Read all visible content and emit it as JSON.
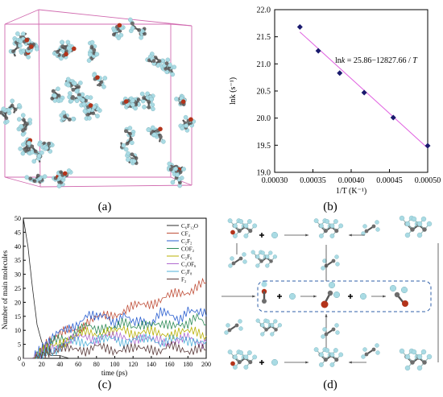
{
  "labels": {
    "a": "(a)",
    "b": "(b)",
    "c": "(c)",
    "d": "(d)"
  },
  "plot_b": {
    "equation": "lnk = 25.86−12827.66 / T",
    "eq_head": "ln",
    "eq_k": "k",
    "eq_rest": " = 25.86−12827.66 / ",
    "eq_T": "T"
  },
  "chart_data": [
    {
      "type": "scatter",
      "panel": "b",
      "xlabel": "1/T (K⁻¹)",
      "ylabel": "lnk (s⁻¹)",
      "xlim": [
        0.0003,
        0.0005
      ],
      "ylim": [
        19.0,
        22.0
      ],
      "xticks": [
        "0.00030",
        "0.00035",
        "0.00040",
        "0.00045",
        "0.00050"
      ],
      "yticks": [
        "19.0",
        "19.5",
        "20.0",
        "20.5",
        "21.0",
        "21.5",
        "22.0"
      ],
      "points": [
        [
          0.000333,
          21.68
        ],
        [
          0.000357,
          21.24
        ],
        [
          0.000385,
          20.83
        ],
        [
          0.000417,
          20.47
        ],
        [
          0.000455,
          20.01
        ],
        [
          0.0005,
          19.49
        ]
      ],
      "fit": {
        "intercept": 25.86,
        "slope": -12827.66
      },
      "colors": {
        "points": "#1a1a6e",
        "fit": "#e060e0"
      }
    },
    {
      "type": "line",
      "panel": "c",
      "xlabel": "time (ps)",
      "ylabel": "Number of main molecules",
      "xlim": [
        0,
        200
      ],
      "ylim": [
        0,
        50
      ],
      "xticks": [
        "0",
        "20",
        "40",
        "60",
        "80",
        "100",
        "120",
        "140",
        "160",
        "180",
        "200"
      ],
      "yticks": [
        "0",
        "5",
        "10",
        "15",
        "20",
        "25",
        "30",
        "35",
        "40",
        "45",
        "50"
      ],
      "x": [
        0,
        5,
        10,
        15,
        20,
        25,
        30,
        40,
        50,
        60,
        70,
        80,
        90,
        100,
        110,
        120,
        130,
        140,
        150,
        160,
        170,
        180,
        190,
        200
      ],
      "series": [
        {
          "name": "C₆F₁₂O",
          "color": "#2b2b2b",
          "values": [
            50,
            40,
            25,
            12,
            6,
            3,
            1,
            1,
            0,
            0,
            0,
            0,
            0,
            0,
            0,
            0,
            0,
            0,
            0,
            0,
            0,
            0,
            0,
            0
          ]
        },
        {
          "name": "CF₄",
          "color": "#c0503a",
          "values": [
            0,
            0,
            0,
            1,
            3,
            5,
            6,
            8,
            10,
            11,
            13,
            14,
            15,
            16,
            17,
            18,
            19,
            20,
            21,
            22,
            23,
            24,
            26,
            27
          ]
        },
        {
          "name": "C₂F₂",
          "color": "#2a5fd0",
          "values": [
            0,
            0,
            0,
            1,
            3,
            5,
            6,
            9,
            11,
            13,
            15,
            14,
            16,
            13,
            15,
            12,
            14,
            13,
            16,
            15,
            14,
            18,
            16,
            15
          ]
        },
        {
          "name": "COF₂",
          "color": "#2e8b57",
          "values": [
            0,
            0,
            0,
            1,
            2,
            4,
            5,
            7,
            8,
            10,
            11,
            10,
            12,
            11,
            12,
            11,
            13,
            12,
            11,
            12,
            13,
            12,
            14,
            12
          ]
        },
        {
          "name": "C₂F₆",
          "color": "#b8b000",
          "values": [
            0,
            0,
            0,
            1,
            2,
            3,
            4,
            6,
            7,
            8,
            9,
            9,
            10,
            9,
            10,
            9,
            10,
            9,
            8,
            9,
            10,
            9,
            9,
            8
          ]
        },
        {
          "name": "C₃OF₆",
          "color": "#b06ad0",
          "values": [
            0,
            0,
            0,
            1,
            2,
            3,
            4,
            5,
            6,
            7,
            8,
            7,
            8,
            7,
            8,
            7,
            7,
            6,
            7,
            6,
            6,
            7,
            6,
            6
          ]
        },
        {
          "name": "C₃F₈",
          "color": "#4fb0d8",
          "values": [
            0,
            0,
            0,
            0,
            1,
            2,
            3,
            4,
            5,
            6,
            6,
            7,
            6,
            7,
            6,
            7,
            6,
            7,
            6,
            7,
            6,
            6,
            7,
            6
          ]
        },
        {
          "name": "F₂",
          "color": "#5a3a3a",
          "values": [
            0,
            0,
            0,
            0,
            1,
            2,
            2,
            3,
            3,
            4,
            3,
            4,
            3,
            3,
            4,
            3,
            3,
            4,
            3,
            4,
            3,
            3,
            4,
            3
          ]
        }
      ],
      "legend_position": "top-right"
    }
  ],
  "colors": {
    "carbon": "#6d6d6d",
    "fluorine": "#a9dbe4",
    "oxygen": "#b3331a",
    "box": "#d16bb0",
    "dash": "#2f5fa8"
  },
  "icons": {
    "molecule_panel_a": "md-simulation-box-image",
    "molecule_panel_d": "reaction-pathway-diagram"
  }
}
